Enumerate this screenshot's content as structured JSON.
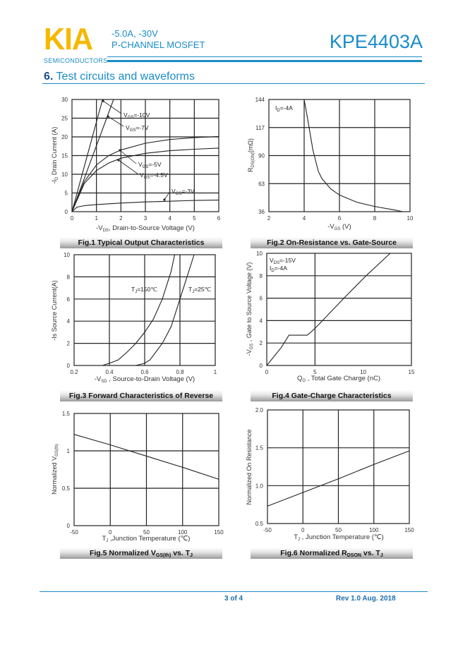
{
  "header": {
    "logo": "KIA",
    "logo_sub": "SEMICONDUCTORS",
    "spec_line1": "-5.0A, -30V",
    "spec_line2": "P-CHANNEL MOSFET",
    "part_number": "KPE4403A",
    "brand_color": "#1a8cc8",
    "logo_color": "#f5b800"
  },
  "section": {
    "number": "6.",
    "title": " Test circuits and waveforms"
  },
  "footer": {
    "page": "3 of 4",
    "revision": "Rev 1.0 Aug. 2018"
  },
  "chart_data": [
    {
      "type": "line",
      "caption": "Fig.1 Typical Output Characteristics",
      "xlabel": "-V_{DS}, Drain-to-Source Voltage (V)",
      "ylabel": "-I_{D} Drain Current (A)",
      "xlim": [
        0,
        6
      ],
      "ylim": [
        0,
        30
      ],
      "xticks": [
        0,
        1,
        2,
        3,
        4,
        5,
        6
      ],
      "yticks": [
        0,
        5,
        10,
        15,
        20,
        25,
        30
      ],
      "grid": true,
      "series": [
        {
          "name": "V_{GS}=-10V",
          "x": [
            0,
            1.25
          ],
          "y": [
            0,
            30
          ]
        },
        {
          "name": "V_{GS}=-7V",
          "x": [
            0,
            1.7
          ],
          "y": [
            0,
            30
          ]
        },
        {
          "name": "V_{GS}=-5V",
          "x": [
            0,
            0.5,
            1,
            1.5,
            2,
            3,
            4,
            5,
            6
          ],
          "y": [
            0,
            8,
            12.5,
            15,
            16.5,
            18.3,
            19.3,
            19.8,
            20.1
          ]
        },
        {
          "name": "V_{GS}=-4.5V",
          "x": [
            0,
            0.5,
            1,
            1.5,
            2,
            3,
            4,
            5,
            6
          ],
          "y": [
            0,
            7.5,
            11,
            13,
            14.3,
            15.6,
            16.3,
            16.7,
            17
          ]
        },
        {
          "name": "V_{GS}=-3V",
          "x": [
            0,
            0.2,
            0.5,
            1,
            2,
            3,
            4,
            5,
            6
          ],
          "y": [
            0,
            1.2,
            1.6,
            1.9,
            2.3,
            2.6,
            2.8,
            3,
            3.1
          ]
        }
      ]
    },
    {
      "type": "line",
      "caption": "Fig.2 On-Resistance vs. Gate-Source",
      "xlabel": "-V_{GS} (V)",
      "ylabel": "R_{DS(ON)}(mΩ)",
      "xlim": [
        2,
        10
      ],
      "ylim": [
        36,
        144
      ],
      "xticks": [
        2,
        4,
        6,
        8,
        10
      ],
      "yticks": [
        36,
        63,
        90,
        117,
        144
      ],
      "grid": true,
      "annotations": [
        "I_{D}=-4A"
      ],
      "series": [
        {
          "x": [
            4,
            4.2,
            4.5,
            4.8,
            5,
            5.5,
            6,
            7,
            8,
            9,
            9.6
          ],
          "y": [
            144,
            125,
            95,
            75,
            68,
            58,
            52,
            45,
            41,
            38,
            36
          ]
        }
      ]
    },
    {
      "type": "line",
      "caption": "Fig.3 Forward Characteristics of Reverse",
      "xlabel": "-V_{SD} , Source-to-Drain Voltage (V)",
      "ylabel": "-Is Source Current(A)",
      "xlim": [
        0.2,
        1
      ],
      "ylim": [
        0,
        10
      ],
      "xticks": [
        0.2,
        0.4,
        0.6,
        0.8,
        1
      ],
      "yticks": [
        0,
        2,
        4,
        6,
        8,
        10
      ],
      "grid": true,
      "series": [
        {
          "name": "T_{J}=150℃",
          "x": [
            0.36,
            0.4,
            0.45,
            0.5,
            0.55,
            0.6,
            0.65,
            0.7,
            0.75,
            0.77
          ],
          "y": [
            0,
            0.2,
            0.5,
            1.2,
            2,
            3,
            4.2,
            6,
            8.5,
            10
          ]
        },
        {
          "name": "T_{J}=25℃",
          "x": [
            0.55,
            0.6,
            0.63,
            0.7,
            0.75,
            0.8,
            0.84,
            0.88
          ],
          "y": [
            0,
            0.2,
            0.5,
            2,
            3.5,
            6,
            8,
            10
          ]
        }
      ]
    },
    {
      "type": "line",
      "caption": "Fig.4 Gate-Charge Characteristics",
      "xlabel": "Q_{G} , Total Gate Charge (nC)",
      "ylabel": "-V_{GS} , Gate to Source Voltage (V)",
      "xlim": [
        0,
        15
      ],
      "ylim": [
        0,
        10
      ],
      "xticks": [
        0,
        5,
        10,
        15
      ],
      "yticks": [
        0,
        2,
        4,
        6,
        8,
        10
      ],
      "grid": true,
      "annotations": [
        "V_{DS}=-15V",
        "I_{D}=-4A"
      ],
      "series": [
        {
          "x": [
            0,
            1.5,
            2.3,
            4.2,
            5,
            8,
            10.3,
            12.8
          ],
          "y": [
            0,
            1.6,
            2.7,
            2.7,
            3.3,
            6,
            8,
            10
          ]
        }
      ]
    },
    {
      "type": "line",
      "caption": "Fig.5 Normalized V_{GS(th)} vs. T_{J}",
      "xlabel": "T_{J} ,Junction Temperature (℃)",
      "ylabel": "Normalized V_{GS(th)}",
      "xlim": [
        -50,
        150
      ],
      "ylim": [
        0,
        1.5
      ],
      "xticks": [
        -50,
        0,
        50,
        100,
        150
      ],
      "yticks": [
        0,
        0.5,
        1,
        1.5
      ],
      "grid": true,
      "series": [
        {
          "x": [
            -50,
            0,
            50,
            100,
            150
          ],
          "y": [
            1.22,
            1.08,
            0.93,
            0.78,
            0.62
          ]
        }
      ]
    },
    {
      "type": "line",
      "caption": "Fig.6 Normalized R_{DSON} vs. T_{J}",
      "xlabel": "T_{J} , Junction Temperature (℃)",
      "ylabel": "Normalized On Resistance",
      "xlim": [
        -50,
        150
      ],
      "ylim": [
        0.5,
        2.0
      ],
      "xticks": [
        -50,
        0,
        50,
        100,
        150
      ],
      "yticks": [
        "0.5",
        "1.0",
        "1.5",
        "2.0"
      ],
      "grid": true,
      "series": [
        {
          "x": [
            -50,
            0,
            50,
            100,
            150
          ],
          "y": [
            0.73,
            0.91,
            1.09,
            1.28,
            1.46
          ]
        }
      ]
    }
  ]
}
